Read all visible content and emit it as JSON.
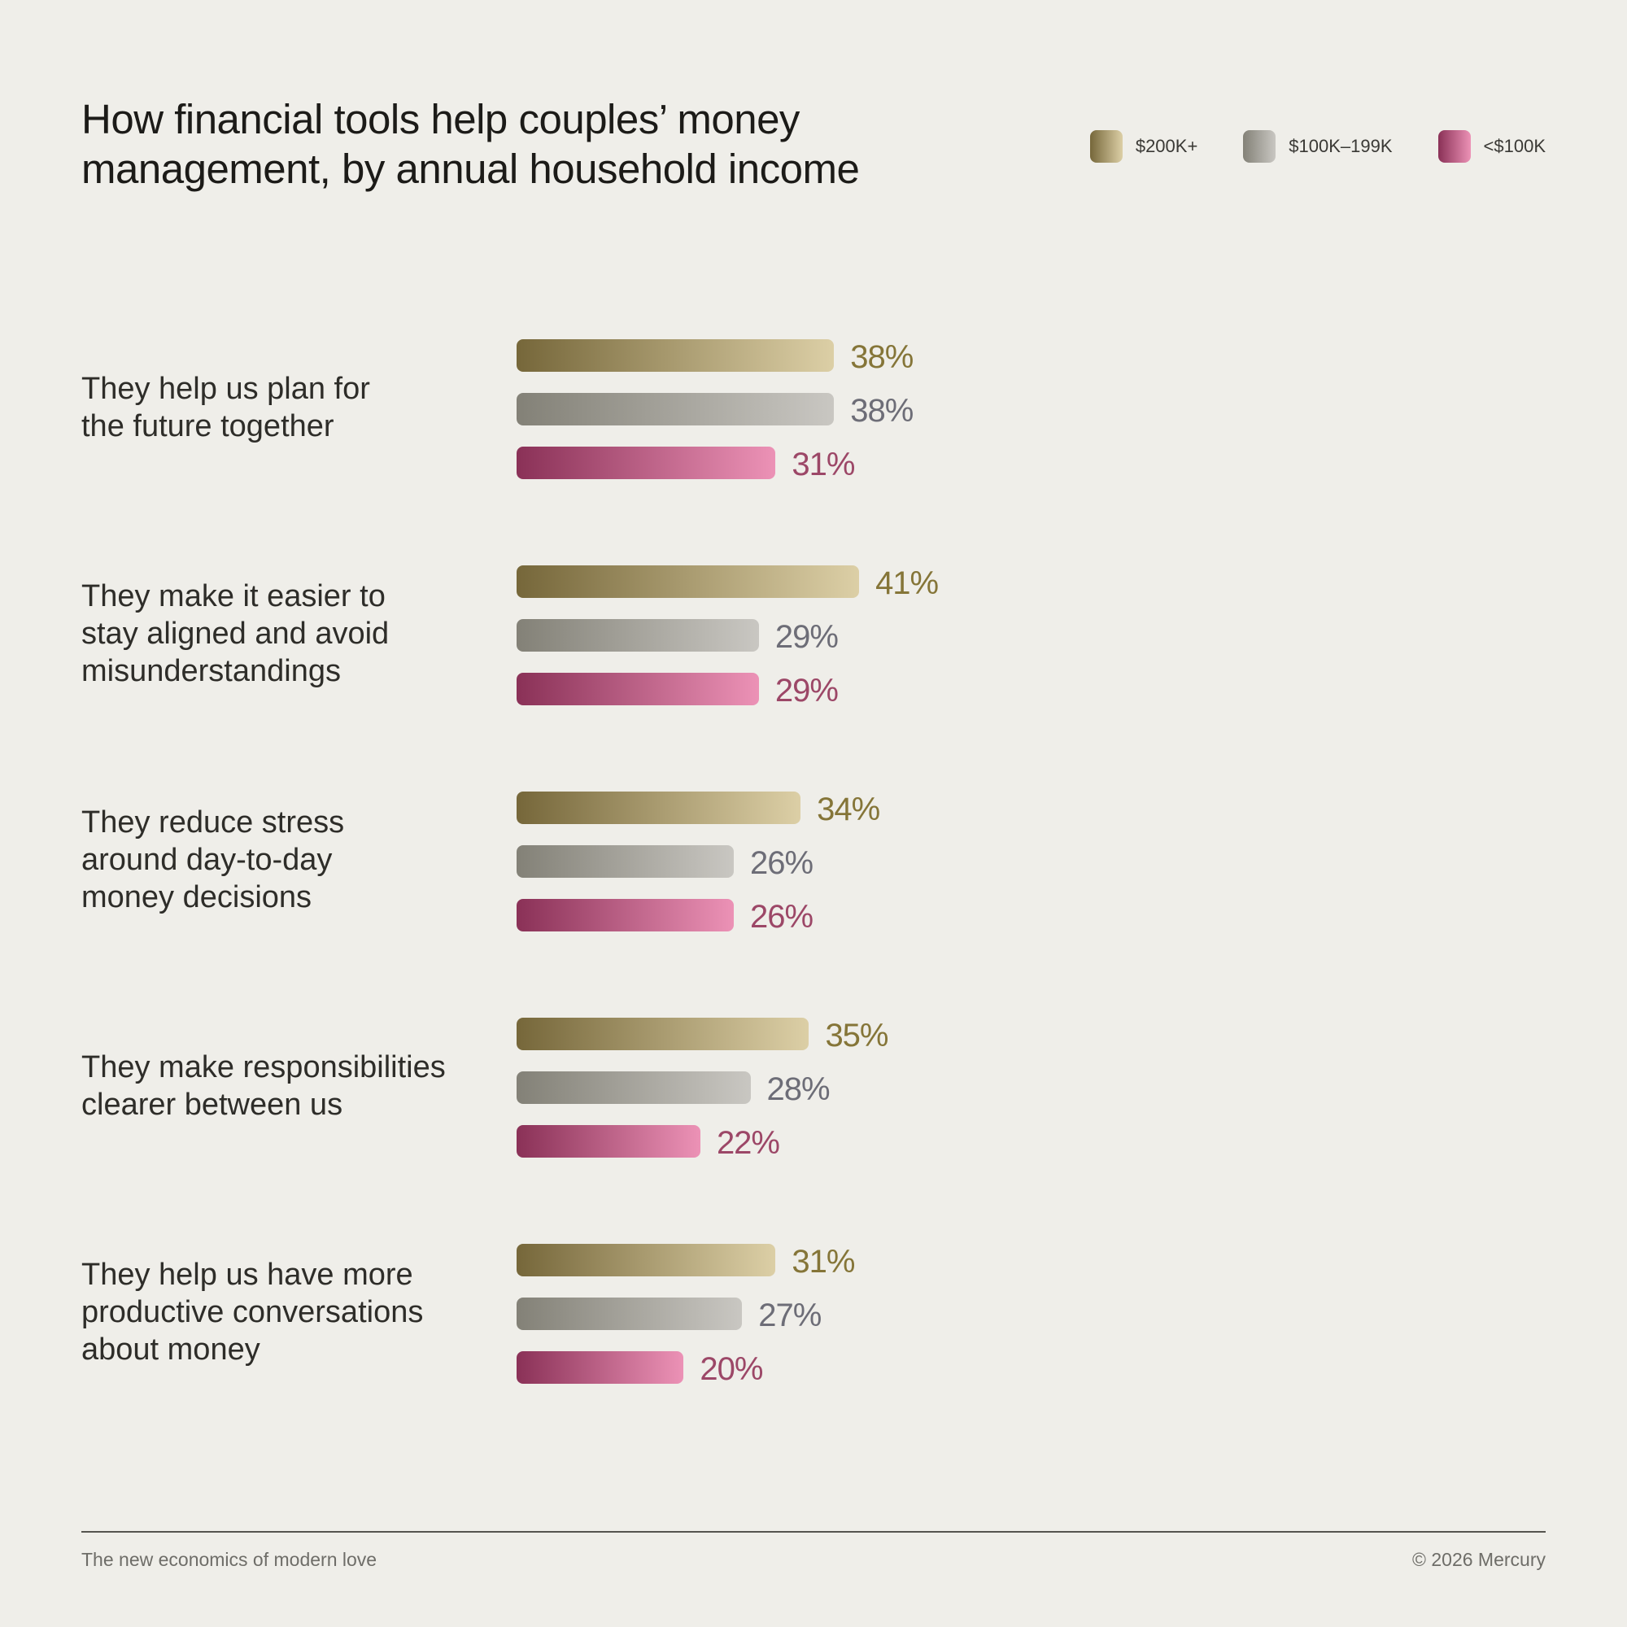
{
  "title": "How financial tools help couples’ money management, by annual household income",
  "colors": {
    "$200K+": {
      "from": "#76673a",
      "to": "#dccfa6",
      "text": "#857538"
    },
    "$100K–199K": {
      "from": "#838177",
      "to": "#c9c7c2",
      "text": "#6d6d77"
    },
    "<$100K": {
      "from": "#8a3157",
      "to": "#ec92b6",
      "text": "#9c4767"
    }
  },
  "chart_data": {
    "type": "bar",
    "orientation": "horizontal",
    "title": "How financial tools help couples’ money management, by annual household income",
    "legend_position": "top-right",
    "grid": false,
    "categories": [
      "They help us plan for the future together",
      "They make it easier to stay aligned and avoid misunderstandings",
      "They reduce stress around day-to-day money decisions",
      "They make responsibilities clearer between us",
      "They help us have more productive conversations about money"
    ],
    "category_lines": [
      [
        "They help us plan for",
        "the future together"
      ],
      [
        "They make it easier to",
        "stay aligned and avoid",
        "misunderstandings"
      ],
      [
        "They reduce stress",
        "around day-to-day",
        "money decisions"
      ],
      [
        "They make responsibilities",
        "clearer between us"
      ],
      [
        "They help us have more",
        "productive conversations",
        "about money"
      ]
    ],
    "series": [
      {
        "name": "$200K+",
        "values": [
          38,
          41,
          34,
          35,
          31
        ]
      },
      {
        "name": "$100K–199K",
        "values": [
          38,
          29,
          26,
          28,
          27
        ]
      },
      {
        "name": "<$100K",
        "values": [
          31,
          29,
          26,
          22,
          20
        ]
      }
    ],
    "unit": "%"
  },
  "footer": {
    "left": "The new economics of modern love",
    "right": "© 2026 Mercury"
  }
}
